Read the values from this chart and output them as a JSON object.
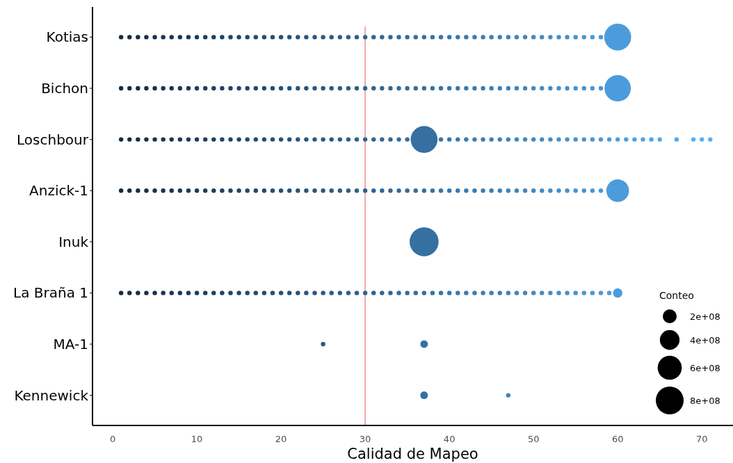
{
  "chart_data": {
    "type": "bubble",
    "orientation": "horizontal",
    "xlabel": "Calidad de Mapeo",
    "legend_title": "Conteo",
    "categories": [
      "Kotias",
      "Bichon",
      "Loschbour",
      "Anzick-1",
      "Inuk",
      "La Braña 1",
      "MA-1",
      "Kennewick"
    ],
    "xlim": [
      -2.4,
      73.7
    ],
    "xticks": [
      0,
      10,
      20,
      30,
      40,
      50,
      60,
      70
    ],
    "size_legend": [
      {
        "value": 200000000.0,
        "label": "2e+08"
      },
      {
        "value": 400000000.0,
        "label": "4e+08"
      },
      {
        "value": 600000000.0,
        "label": "6e+08"
      },
      {
        "value": 800000000.0,
        "label": "8e+08"
      }
    ],
    "ref_lines": [
      {
        "axis": "x",
        "value": 30,
        "color": "#f4a3a3"
      }
    ],
    "series": [
      {
        "values": [
          1,
          2,
          3,
          4,
          5,
          6,
          7,
          8,
          9,
          10,
          11,
          12,
          13,
          14,
          15,
          16,
          17,
          18,
          19,
          20,
          21,
          22,
          23,
          24,
          25,
          26,
          27,
          28,
          29,
          30,
          31,
          32,
          33,
          34,
          35,
          36,
          37,
          38,
          39,
          40,
          41,
          42,
          43,
          44,
          45,
          46,
          47,
          48,
          49,
          50,
          51,
          52,
          53,
          54,
          55,
          56,
          57,
          58,
          60
        ],
        "x": [
          "Kotias",
          "Kotias",
          "Kotias",
          "Kotias",
          "Kotias",
          "Kotias",
          "Kotias",
          "Kotias",
          "Kotias",
          "Kotias",
          "Kotias",
          "Kotias",
          "Kotias",
          "Kotias",
          "Kotias",
          "Kotias",
          "Kotias",
          "Kotias",
          "Kotias",
          "Kotias",
          "Kotias",
          "Kotias",
          "Kotias",
          "Kotias",
          "Kotias",
          "Kotias",
          "Kotias",
          "Kotias",
          "Kotias",
          "Kotias",
          "Kotias",
          "Kotias",
          "Kotias",
          "Kotias",
          "Kotias",
          "Kotias",
          "Kotias",
          "Kotias",
          "Kotias",
          "Kotias",
          "Kotias",
          "Kotias",
          "Kotias",
          "Kotias",
          "Kotias",
          "Kotias",
          "Kotias",
          "Kotias",
          "Kotias",
          "Kotias",
          "Kotias",
          "Kotias",
          "Kotias",
          "Kotias",
          "Kotias",
          "Kotias",
          "Kotias",
          "Kotias",
          "Kotias"
        ],
        "sizes": [
          null,
          null,
          null,
          null,
          null,
          null,
          null,
          null,
          null,
          null,
          null,
          null,
          null,
          null,
          null,
          null,
          null,
          null,
          null,
          null,
          null,
          null,
          null,
          null,
          null,
          null,
          null,
          null,
          null,
          null,
          null,
          null,
          null,
          null,
          null,
          null,
          null,
          null,
          null,
          null,
          null,
          null,
          null,
          null,
          null,
          null,
          null,
          null,
          null,
          null,
          null,
          null,
          null,
          null,
          null,
          null,
          null,
          null,
          750000000.0
        ],
        "colors": [
          "#132b43",
          "#142d46",
          "#152f48",
          "#16314b",
          "#17334d",
          "#183550",
          "#193652",
          "#1a3855",
          "#1b3a58",
          "#1c3c5a",
          "#1d3e5d",
          "#1e405f",
          "#1e4262",
          "#1f4464",
          "#204667",
          "#21486a",
          "#224a6c",
          "#234c6f",
          "#244d71",
          "#254f74",
          "#265176",
          "#275379",
          "#28557c",
          "#29577e",
          "#2a5981",
          "#2b5b83",
          "#2c5d86",
          "#2d5f88",
          "#2e618b",
          "#2f638e",
          "#306490",
          "#316693",
          "#326895",
          "#336a98",
          "#346c9a",
          "#356e9d",
          "#3570a0",
          "#3672a2",
          "#3774a5",
          "#3876a7",
          "#3978aa",
          "#3a79ac",
          "#3b7baf",
          "#3c7db2",
          "#3d7fb4",
          "#3e81b7",
          "#3f83b9",
          "#4085bc",
          "#4187be",
          "#4289c1",
          "#438bc4",
          "#448dc6",
          "#458fc9",
          "#4690cb",
          "#4792ce",
          "#4894d0",
          "#4996d3",
          "#4a98d6",
          "#4c9cdb"
        ]
      },
      {
        "values": [
          1,
          2,
          3,
          4,
          5,
          6,
          7,
          8,
          9,
          10,
          11,
          12,
          13,
          14,
          15,
          16,
          17,
          18,
          19,
          20,
          21,
          22,
          23,
          24,
          25,
          26,
          27,
          28,
          29,
          30,
          31,
          32,
          33,
          34,
          35,
          36,
          37,
          38,
          39,
          40,
          41,
          42,
          43,
          44,
          45,
          46,
          47,
          48,
          49,
          50,
          51,
          52,
          53,
          54,
          55,
          56,
          57,
          58,
          60
        ],
        "x": [
          "Bichon",
          "Bichon",
          "Bichon",
          "Bichon",
          "Bichon",
          "Bichon",
          "Bichon",
          "Bichon",
          "Bichon",
          "Bichon",
          "Bichon",
          "Bichon",
          "Bichon",
          "Bichon",
          "Bichon",
          "Bichon",
          "Bichon",
          "Bichon",
          "Bichon",
          "Bichon",
          "Bichon",
          "Bichon",
          "Bichon",
          "Bichon",
          "Bichon",
          "Bichon",
          "Bichon",
          "Bichon",
          "Bichon",
          "Bichon",
          "Bichon",
          "Bichon",
          "Bichon",
          "Bichon",
          "Bichon",
          "Bichon",
          "Bichon",
          "Bichon",
          "Bichon",
          "Bichon",
          "Bichon",
          "Bichon",
          "Bichon",
          "Bichon",
          "Bichon",
          "Bichon",
          "Bichon",
          "Bichon",
          "Bichon",
          "Bichon",
          "Bichon",
          "Bichon",
          "Bichon",
          "Bichon",
          "Bichon",
          "Bichon",
          "Bichon",
          "Bichon",
          "Bichon"
        ],
        "sizes": [
          null,
          null,
          null,
          null,
          null,
          null,
          null,
          null,
          null,
          null,
          null,
          null,
          null,
          null,
          null,
          null,
          null,
          null,
          null,
          null,
          null,
          null,
          null,
          null,
          null,
          null,
          null,
          null,
          null,
          null,
          null,
          null,
          null,
          null,
          null,
          null,
          null,
          null,
          null,
          null,
          null,
          null,
          null,
          null,
          null,
          null,
          null,
          null,
          null,
          null,
          null,
          null,
          null,
          null,
          null,
          null,
          null,
          null,
          720000000.0
        ],
        "colors": [
          "#132b43",
          "#142d46",
          "#152f48",
          "#16314b",
          "#17334d",
          "#183550",
          "#193652",
          "#1a3855",
          "#1b3a58",
          "#1c3c5a",
          "#1d3e5d",
          "#1e405f",
          "#1e4262",
          "#1f4464",
          "#204667",
          "#21486a",
          "#224a6c",
          "#234c6f",
          "#244d71",
          "#254f74",
          "#265176",
          "#275379",
          "#28557c",
          "#29577e",
          "#2a5981",
          "#2b5b83",
          "#2c5d86",
          "#2d5f88",
          "#2e618b",
          "#2f638e",
          "#306490",
          "#316693",
          "#326895",
          "#336a98",
          "#346c9a",
          "#356e9d",
          "#3570a0",
          "#3672a2",
          "#3774a5",
          "#3876a7",
          "#3978aa",
          "#3a79ac",
          "#3b7baf",
          "#3c7db2",
          "#3d7fb4",
          "#3e81b7",
          "#3f83b9",
          "#4085bc",
          "#4187be",
          "#4289c1",
          "#438bc4",
          "#448dc6",
          "#458fc9",
          "#4690cb",
          "#4792ce",
          "#4894d0",
          "#4996d3",
          "#4a98d6",
          "#4c9cdb"
        ]
      },
      {
        "values": [
          1,
          2,
          3,
          4,
          5,
          6,
          7,
          8,
          9,
          10,
          11,
          12,
          13,
          14,
          15,
          16,
          17,
          18,
          19,
          20,
          21,
          22,
          23,
          24,
          25,
          26,
          27,
          28,
          29,
          30,
          31,
          32,
          33,
          34,
          35,
          37,
          39,
          40,
          41,
          42,
          43,
          44,
          45,
          46,
          47,
          48,
          49,
          50,
          51,
          52,
          53,
          54,
          55,
          56,
          57,
          58,
          59,
          60,
          61,
          62,
          63,
          64,
          65,
          67,
          69,
          70,
          71
        ],
        "x": [
          "Loschbour",
          "Loschbour",
          "Loschbour",
          "Loschbour",
          "Loschbour",
          "Loschbour",
          "Loschbour",
          "Loschbour",
          "Loschbour",
          "Loschbour",
          "Loschbour",
          "Loschbour",
          "Loschbour",
          "Loschbour",
          "Loschbour",
          "Loschbour",
          "Loschbour",
          "Loschbour",
          "Loschbour",
          "Loschbour",
          "Loschbour",
          "Loschbour",
          "Loschbour",
          "Loschbour",
          "Loschbour",
          "Loschbour",
          "Loschbour",
          "Loschbour",
          "Loschbour",
          "Loschbour",
          "Loschbour",
          "Loschbour",
          "Loschbour",
          "Loschbour",
          "Loschbour",
          "Loschbour",
          "Loschbour",
          "Loschbour",
          "Loschbour",
          "Loschbour",
          "Loschbour",
          "Loschbour",
          "Loschbour",
          "Loschbour",
          "Loschbour",
          "Loschbour",
          "Loschbour",
          "Loschbour",
          "Loschbour",
          "Loschbour",
          "Loschbour",
          "Loschbour",
          "Loschbour",
          "Loschbour",
          "Loschbour",
          "Loschbour",
          "Loschbour",
          "Loschbour",
          "Loschbour",
          "Loschbour",
          "Loschbour",
          "Loschbour",
          "Loschbour",
          "Loschbour",
          "Loschbour",
          "Loschbour",
          "Loschbour"
        ],
        "sizes": [
          null,
          null,
          null,
          null,
          null,
          null,
          null,
          null,
          null,
          null,
          null,
          null,
          null,
          null,
          null,
          null,
          null,
          null,
          null,
          null,
          null,
          null,
          null,
          null,
          null,
          null,
          null,
          null,
          null,
          null,
          null,
          null,
          null,
          null,
          null,
          750000000.0,
          null,
          null,
          null,
          null,
          null,
          null,
          null,
          null,
          null,
          null,
          null,
          null,
          null,
          null,
          null,
          null,
          null,
          null,
          null,
          null,
          null,
          null,
          null,
          null,
          null,
          null,
          null,
          null,
          null,
          null,
          null
        ],
        "colors": [
          "#132b43",
          "#142d46",
          "#152f48",
          "#16314b",
          "#17334d",
          "#183550",
          "#193652",
          "#1a3855",
          "#1b3a58",
          "#1c3c5a",
          "#1d3e5d",
          "#1e405f",
          "#1e4262",
          "#1f4464",
          "#204667",
          "#21486a",
          "#224a6c",
          "#234c6f",
          "#244d71",
          "#254f74",
          "#265176",
          "#275379",
          "#28557c",
          "#29577e",
          "#2a5981",
          "#2b5b83",
          "#2c5d86",
          "#2d5f88",
          "#2e618b",
          "#2f638e",
          "#306490",
          "#316693",
          "#326895",
          "#336a98",
          "#346c9a",
          "#3570a0",
          "#3774a5",
          "#3876a7",
          "#3978aa",
          "#3a79ac",
          "#3b7baf",
          "#3c7db2",
          "#3d7fb4",
          "#3e81b7",
          "#3f83b9",
          "#4085bc",
          "#4187be",
          "#4289c1",
          "#438bc4",
          "#448dc6",
          "#458fc9",
          "#4690cb",
          "#4792ce",
          "#4894d0",
          "#4996d3",
          "#4a98d6",
          "#4b9ad8",
          "#4c9cdb",
          "#4d9edd",
          "#4da0e0",
          "#4ea2e2",
          "#4fa4e5",
          "#50a6e7",
          "#52a9ed",
          "#54adf2",
          "#55aff4",
          "#56b1f7"
        ]
      },
      {
        "values": [
          1,
          2,
          3,
          4,
          5,
          6,
          7,
          8,
          9,
          10,
          11,
          12,
          13,
          14,
          15,
          16,
          17,
          18,
          19,
          20,
          21,
          22,
          23,
          24,
          25,
          26,
          27,
          28,
          29,
          30,
          31,
          32,
          33,
          34,
          35,
          36,
          37,
          38,
          39,
          40,
          41,
          42,
          43,
          44,
          45,
          46,
          47,
          48,
          49,
          50,
          51,
          52,
          53,
          54,
          55,
          56,
          57,
          58,
          60
        ],
        "x": [
          "Anzick-1",
          "Anzick-1",
          "Anzick-1",
          "Anzick-1",
          "Anzick-1",
          "Anzick-1",
          "Anzick-1",
          "Anzick-1",
          "Anzick-1",
          "Anzick-1",
          "Anzick-1",
          "Anzick-1",
          "Anzick-1",
          "Anzick-1",
          "Anzick-1",
          "Anzick-1",
          "Anzick-1",
          "Anzick-1",
          "Anzick-1",
          "Anzick-1",
          "Anzick-1",
          "Anzick-1",
          "Anzick-1",
          "Anzick-1",
          "Anzick-1",
          "Anzick-1",
          "Anzick-1",
          "Anzick-1",
          "Anzick-1",
          "Anzick-1",
          "Anzick-1",
          "Anzick-1",
          "Anzick-1",
          "Anzick-1",
          "Anzick-1",
          "Anzick-1",
          "Anzick-1",
          "Anzick-1",
          "Anzick-1",
          "Anzick-1",
          "Anzick-1",
          "Anzick-1",
          "Anzick-1",
          "Anzick-1",
          "Anzick-1",
          "Anzick-1",
          "Anzick-1",
          "Anzick-1",
          "Anzick-1",
          "Anzick-1",
          "Anzick-1",
          "Anzick-1",
          "Anzick-1",
          "Anzick-1",
          "Anzick-1",
          "Anzick-1",
          "Anzick-1",
          "Anzick-1",
          "Anzick-1"
        ],
        "sizes": [
          null,
          null,
          null,
          null,
          null,
          null,
          null,
          null,
          null,
          null,
          null,
          null,
          null,
          null,
          null,
          null,
          null,
          null,
          null,
          null,
          null,
          null,
          null,
          null,
          null,
          null,
          null,
          null,
          null,
          null,
          null,
          null,
          null,
          null,
          null,
          null,
          null,
          null,
          null,
          null,
          null,
          null,
          null,
          null,
          null,
          null,
          null,
          null,
          null,
          null,
          null,
          null,
          null,
          null,
          null,
          null,
          null,
          null,
          530000000.0
        ],
        "colors": [
          "#132b43",
          "#142d46",
          "#152f48",
          "#16314b",
          "#17334d",
          "#183550",
          "#193652",
          "#1a3855",
          "#1b3a58",
          "#1c3c5a",
          "#1d3e5d",
          "#1e405f",
          "#1e4262",
          "#1f4464",
          "#204667",
          "#21486a",
          "#224a6c",
          "#234c6f",
          "#244d71",
          "#254f74",
          "#265176",
          "#275379",
          "#28557c",
          "#29577e",
          "#2a5981",
          "#2b5b83",
          "#2c5d86",
          "#2d5f88",
          "#2e618b",
          "#2f638e",
          "#306490",
          "#316693",
          "#326895",
          "#336a98",
          "#346c9a",
          "#356e9d",
          "#3570a0",
          "#3672a2",
          "#3774a5",
          "#3876a7",
          "#3978aa",
          "#3a79ac",
          "#3b7baf",
          "#3c7db2",
          "#3d7fb4",
          "#3e81b7",
          "#3f83b9",
          "#4085bc",
          "#4187be",
          "#4289c1",
          "#438bc4",
          "#448dc6",
          "#458fc9",
          "#4690cb",
          "#4792ce",
          "#4894d0",
          "#4996d3",
          "#4a98d6",
          "#4c9cdb"
        ]
      },
      {
        "values": [
          37
        ],
        "x": [
          "Inuk"
        ],
        "sizes": [
          870000000.0
        ],
        "colors": [
          "#3570a0"
        ]
      },
      {
        "values": [
          1,
          2,
          3,
          4,
          5,
          6,
          7,
          8,
          9,
          10,
          11,
          12,
          13,
          14,
          15,
          16,
          17,
          18,
          19,
          20,
          21,
          22,
          23,
          24,
          25,
          26,
          27,
          28,
          29,
          30,
          31,
          32,
          33,
          34,
          35,
          36,
          37,
          38,
          39,
          40,
          41,
          42,
          43,
          44,
          45,
          46,
          47,
          48,
          49,
          50,
          51,
          52,
          53,
          54,
          55,
          56,
          57,
          58,
          59,
          60
        ],
        "x": [
          "La Braña 1",
          "La Braña 1",
          "La Braña 1",
          "La Braña 1",
          "La Braña 1",
          "La Braña 1",
          "La Braña 1",
          "La Braña 1",
          "La Braña 1",
          "La Braña 1",
          "La Braña 1",
          "La Braña 1",
          "La Braña 1",
          "La Braña 1",
          "La Braña 1",
          "La Braña 1",
          "La Braña 1",
          "La Braña 1",
          "La Braña 1",
          "La Braña 1",
          "La Braña 1",
          "La Braña 1",
          "La Braña 1",
          "La Braña 1",
          "La Braña 1",
          "La Braña 1",
          "La Braña 1",
          "La Braña 1",
          "La Braña 1",
          "La Braña 1",
          "La Braña 1",
          "La Braña 1",
          "La Braña 1",
          "La Braña 1",
          "La Braña 1",
          "La Braña 1",
          "La Braña 1",
          "La Braña 1",
          "La Braña 1",
          "La Braña 1",
          "La Braña 1",
          "La Braña 1",
          "La Braña 1",
          "La Braña 1",
          "La Braña 1",
          "La Braña 1",
          "La Braña 1",
          "La Braña 1",
          "La Braña 1",
          "La Braña 1",
          "La Braña 1",
          "La Braña 1",
          "La Braña 1",
          "La Braña 1",
          "La Braña 1",
          "La Braña 1",
          "La Braña 1",
          "La Braña 1",
          "La Braña 1",
          "La Braña 1"
        ],
        "sizes": [
          null,
          null,
          null,
          null,
          null,
          null,
          null,
          null,
          null,
          null,
          null,
          null,
          null,
          null,
          null,
          null,
          null,
          null,
          null,
          null,
          null,
          null,
          null,
          null,
          null,
          null,
          null,
          null,
          null,
          null,
          null,
          null,
          null,
          null,
          null,
          null,
          null,
          null,
          null,
          null,
          null,
          null,
          null,
          null,
          null,
          null,
          null,
          null,
          null,
          null,
          null,
          null,
          null,
          null,
          null,
          null,
          null,
          null,
          null,
          90000000.0
        ],
        "colors": [
          "#132b43",
          "#142d46",
          "#152f48",
          "#16314b",
          "#17334d",
          "#183550",
          "#193652",
          "#1a3855",
          "#1b3a58",
          "#1c3c5a",
          "#1d3e5d",
          "#1e405f",
          "#1e4262",
          "#1f4464",
          "#204667",
          "#21486a",
          "#224a6c",
          "#234c6f",
          "#244d71",
          "#254f74",
          "#265176",
          "#275379",
          "#28557c",
          "#29577e",
          "#2a5981",
          "#2b5b83",
          "#2c5d86",
          "#2d5f88",
          "#2e618b",
          "#2f638e",
          "#306490",
          "#316693",
          "#326895",
          "#336a98",
          "#346c9a",
          "#356e9d",
          "#3570a0",
          "#3672a2",
          "#3774a5",
          "#3876a7",
          "#3978aa",
          "#3a79ac",
          "#3b7baf",
          "#3c7db2",
          "#3d7fb4",
          "#3e81b7",
          "#3f83b9",
          "#4085bc",
          "#4187be",
          "#4289c1",
          "#438bc4",
          "#448dc6",
          "#458fc9",
          "#4690cb",
          "#4792ce",
          "#4894d0",
          "#4996d3",
          "#4a98d6",
          "#4b9ad8",
          "#4c9cdb"
        ]
      },
      {
        "values": [
          25,
          37
        ],
        "x": [
          "MA-1",
          "MA-1"
        ],
        "sizes": [
          null,
          60000000.0
        ],
        "colors": [
          "#2a5981",
          "#3570a0"
        ]
      },
      {
        "values": [
          37,
          47
        ],
        "x": [
          "Kennewick",
          "Kennewick"
        ],
        "sizes": [
          60000000.0,
          null
        ],
        "colors": [
          "#3570a0",
          "#3f83b9"
        ]
      }
    ]
  }
}
